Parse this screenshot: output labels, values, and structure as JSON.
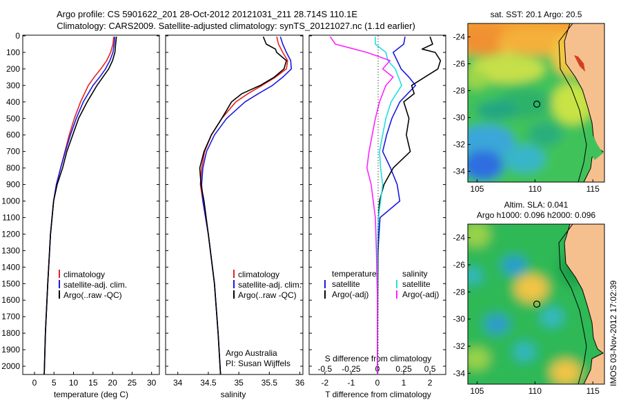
{
  "header": {
    "title_line1": "Argo profile: CS 5901622_201 28-Oct-2012 20121031_211 28.714S 110.1E",
    "title_line2": "Climatology: CARS2009. Satellite-adjusted climatology: synTS_20121027.nc (1.1d earlier)"
  },
  "side_label": "IMOS 03-Nov-2012 17:02:39",
  "colors": {
    "climatology": "#e8221f",
    "satellite": "#1818e0",
    "argo": "#000000",
    "salinity_sat": "#22dede",
    "salinity_argo": "#ff22ff",
    "coast": "#f6c08e"
  },
  "chart_data": [
    {
      "type": "line",
      "xlabel": "temperature (deg C)",
      "xticks": [
        "0",
        "5",
        "10",
        "15",
        "20",
        "25",
        "30"
      ],
      "xlim": [
        -3,
        32
      ],
      "ylim": [
        0,
        2050
      ],
      "yticks": [
        "0",
        "100",
        "200",
        "300",
        "400",
        "500",
        "600",
        "700",
        "800",
        "900",
        "1000",
        "1100",
        "1200",
        "1300",
        "1400",
        "1500",
        "1600",
        "1700",
        "1800",
        "1900",
        "2000"
      ],
      "legend": [
        "climatology",
        "satellite-adj. clim.",
        "Argo(..raw -QC)"
      ],
      "series": [
        {
          "name": "climatology",
          "depth": [
            5,
            50,
            100,
            150,
            200,
            250,
            300,
            400,
            500,
            600,
            700,
            800,
            900,
            1000,
            1200,
            1500,
            1800,
            2050
          ],
          "values": [
            20.3,
            20.1,
            19.5,
            18.5,
            17,
            15.3,
            13.8,
            11.8,
            10.2,
            8.9,
            7.8,
            6.7,
            5.6,
            4.9,
            4.1,
            3.4,
            2.8,
            2.5
          ]
        },
        {
          "name": "satellite-adj. clim.",
          "depth": [
            5,
            50,
            100,
            150,
            200,
            250,
            300,
            400,
            500,
            600,
            700,
            800,
            900,
            1000,
            1200,
            1500,
            1800,
            2050
          ],
          "values": [
            20.6,
            20.4,
            20.1,
            19.3,
            18.2,
            16.7,
            15,
            12.5,
            10.7,
            9.2,
            7.9,
            6.7,
            5.6,
            4.9,
            4.1,
            3.4,
            2.8,
            2.5
          ]
        },
        {
          "name": "Argo(..raw -QC)",
          "depth": [
            5,
            50,
            100,
            150,
            200,
            250,
            300,
            400,
            500,
            600,
            700,
            800,
            900,
            1000,
            1200,
            1500,
            1800,
            2050
          ],
          "values": [
            21,
            20.8,
            20.6,
            20,
            19,
            17.5,
            16,
            13.5,
            11.3,
            9.8,
            8.3,
            7.2,
            5.8,
            4.9,
            4.1,
            3.4,
            2.8,
            2.5
          ]
        }
      ]
    },
    {
      "type": "line",
      "xlabel": "salinity",
      "xticks": [
        "34",
        "34.5",
        "35",
        "35.5",
        "36"
      ],
      "xlim": [
        33.8,
        36.05
      ],
      "ylim": [
        0,
        2050
      ],
      "legend": [
        "climatology",
        "satellite-adj. clim.",
        "Argo(..raw -QC)"
      ],
      "annotation": [
        "Argo Australia",
        "PI: Susan Wijffels"
      ],
      "series": [
        {
          "name": "climatology",
          "depth": [
            5,
            50,
            100,
            150,
            200,
            250,
            300,
            350,
            400,
            500,
            600,
            700,
            800,
            900,
            1000,
            1200,
            1500,
            1800,
            2050
          ],
          "values": [
            35.62,
            35.65,
            35.72,
            35.8,
            35.78,
            35.6,
            35.38,
            35.15,
            34.95,
            34.72,
            34.55,
            34.44,
            34.39,
            34.37,
            34.41,
            34.5,
            34.6,
            34.66,
            34.7
          ]
        },
        {
          "name": "satellite-adj. clim.",
          "depth": [
            5,
            50,
            100,
            150,
            200,
            250,
            300,
            350,
            400,
            500,
            600,
            700,
            800,
            900,
            1000,
            1200,
            1500,
            1800,
            2050
          ],
          "values": [
            35.68,
            35.72,
            35.78,
            35.85,
            35.86,
            35.72,
            35.55,
            35.32,
            35.1,
            34.8,
            34.6,
            34.47,
            34.41,
            34.39,
            34.41,
            34.5,
            34.6,
            34.66,
            34.7
          ]
        },
        {
          "name": "Argo(..raw -QC)",
          "depth": [
            5,
            50,
            80,
            100,
            150,
            200,
            250,
            300,
            350,
            400,
            500,
            600,
            700,
            800,
            900,
            1000,
            1200,
            1500,
            1800,
            2050
          ],
          "values": [
            35.4,
            35.45,
            35.6,
            35.62,
            35.78,
            35.74,
            35.58,
            35.35,
            35.05,
            34.88,
            34.72,
            34.55,
            34.43,
            34.36,
            34.38,
            34.43,
            34.5,
            34.6,
            34.66,
            34.7
          ]
        }
      ]
    },
    {
      "type": "line",
      "xlabel_top": "S difference from climatology",
      "xlabel_bottom": "T difference from climatology",
      "xticks_T": [
        "-2",
        "-1",
        "0",
        "1",
        "2"
      ],
      "xticks_S": [
        "-0.5",
        "-0.25",
        "0",
        "0.25",
        "0.5"
      ],
      "xlim_T": [
        -2.6,
        2.6
      ],
      "ylim": [
        0,
        2050
      ],
      "legend_temperature_title": "temperature",
      "legend_salinity_title": "salinity",
      "legend": [
        "satellite",
        "Argo(-adj)",
        "satellite",
        "Argo(-adj)"
      ],
      "series": [
        {
          "name": "satellite",
          "quantity": "temperature",
          "depth": [
            5,
            50,
            100,
            150,
            200,
            250,
            300,
            400,
            500,
            600,
            700,
            800,
            900,
            1000,
            1100,
            1300,
            1600,
            2050
          ],
          "values": [
            1.05,
            1.0,
            0.6,
            0.75,
            0.9,
            1.2,
            1.45,
            0.85,
            0.55,
            0.35,
            0.2,
            0.5,
            0.75,
            0.85,
            0.1,
            0.02,
            0,
            0
          ]
        },
        {
          "name": "Argo(-adj)",
          "quantity": "temperature",
          "depth": [
            5,
            50,
            80,
            100,
            150,
            200,
            250,
            300,
            350,
            400,
            500,
            600,
            700,
            800,
            900,
            1000,
            1100,
            1300,
            1600,
            2050
          ],
          "values": [
            2.0,
            2.1,
            1.7,
            2.2,
            2.4,
            2.3,
            1.8,
            1.3,
            1.4,
            1.0,
            1.2,
            1.1,
            1.25,
            0.6,
            0.25,
            0.08,
            0.04,
            0.02,
            0.01,
            0
          ]
        },
        {
          "name": "satellite",
          "quantity": "salinity",
          "depth": [
            5,
            50,
            100,
            150,
            200,
            250,
            300,
            400,
            500,
            600,
            700,
            800,
            900,
            1000,
            1100,
            1300,
            1600,
            2050
          ],
          "values": [
            -0.02,
            -0.02,
            0.08,
            0.1,
            0.17,
            0.2,
            0.23,
            0.13,
            0.08,
            0.05,
            0.02,
            0.03,
            0.05,
            0.03,
            0.01,
            0,
            0,
            0
          ]
        },
        {
          "name": "Argo(-adj)",
          "quantity": "salinity",
          "depth": [
            5,
            50,
            100,
            150,
            200,
            250,
            300,
            350,
            400,
            500,
            600,
            700,
            800,
            900,
            1000,
            1100,
            1300,
            1600,
            2050
          ],
          "values": [
            -0.45,
            -0.4,
            -0.1,
            0.12,
            0.05,
            0.15,
            0.08,
            0.05,
            0.02,
            -0.02,
            -0.05,
            -0.08,
            -0.1,
            -0.06,
            -0.04,
            -0.02,
            -0.01,
            0,
            0
          ]
        }
      ]
    },
    {
      "type": "heatmap",
      "title": "sat. SST: 20.1  Argo: 20.5",
      "xticks": [
        "105",
        "110",
        "115"
      ],
      "yticks": [
        "-24",
        "-26",
        "-28",
        "-30",
        "-32",
        "-34"
      ],
      "xlim": [
        104.2,
        116
      ],
      "ylim": [
        -34.8,
        -23
      ],
      "marker": {
        "lon": 110.1,
        "lat": -28.714
      }
    },
    {
      "type": "heatmap",
      "title_line1": "Altim. SLA: 0.041",
      "title_line2": "Argo h1000: 0.096 h2000: 0.096",
      "xticks": [
        "105",
        "110",
        "115"
      ],
      "yticks": [
        "-24",
        "-26",
        "-28",
        "-30",
        "-32",
        "-34"
      ],
      "xlim": [
        104.2,
        116
      ],
      "ylim": [
        -34.8,
        -23
      ],
      "marker": {
        "lon": 110.1,
        "lat": -28.714
      }
    }
  ]
}
